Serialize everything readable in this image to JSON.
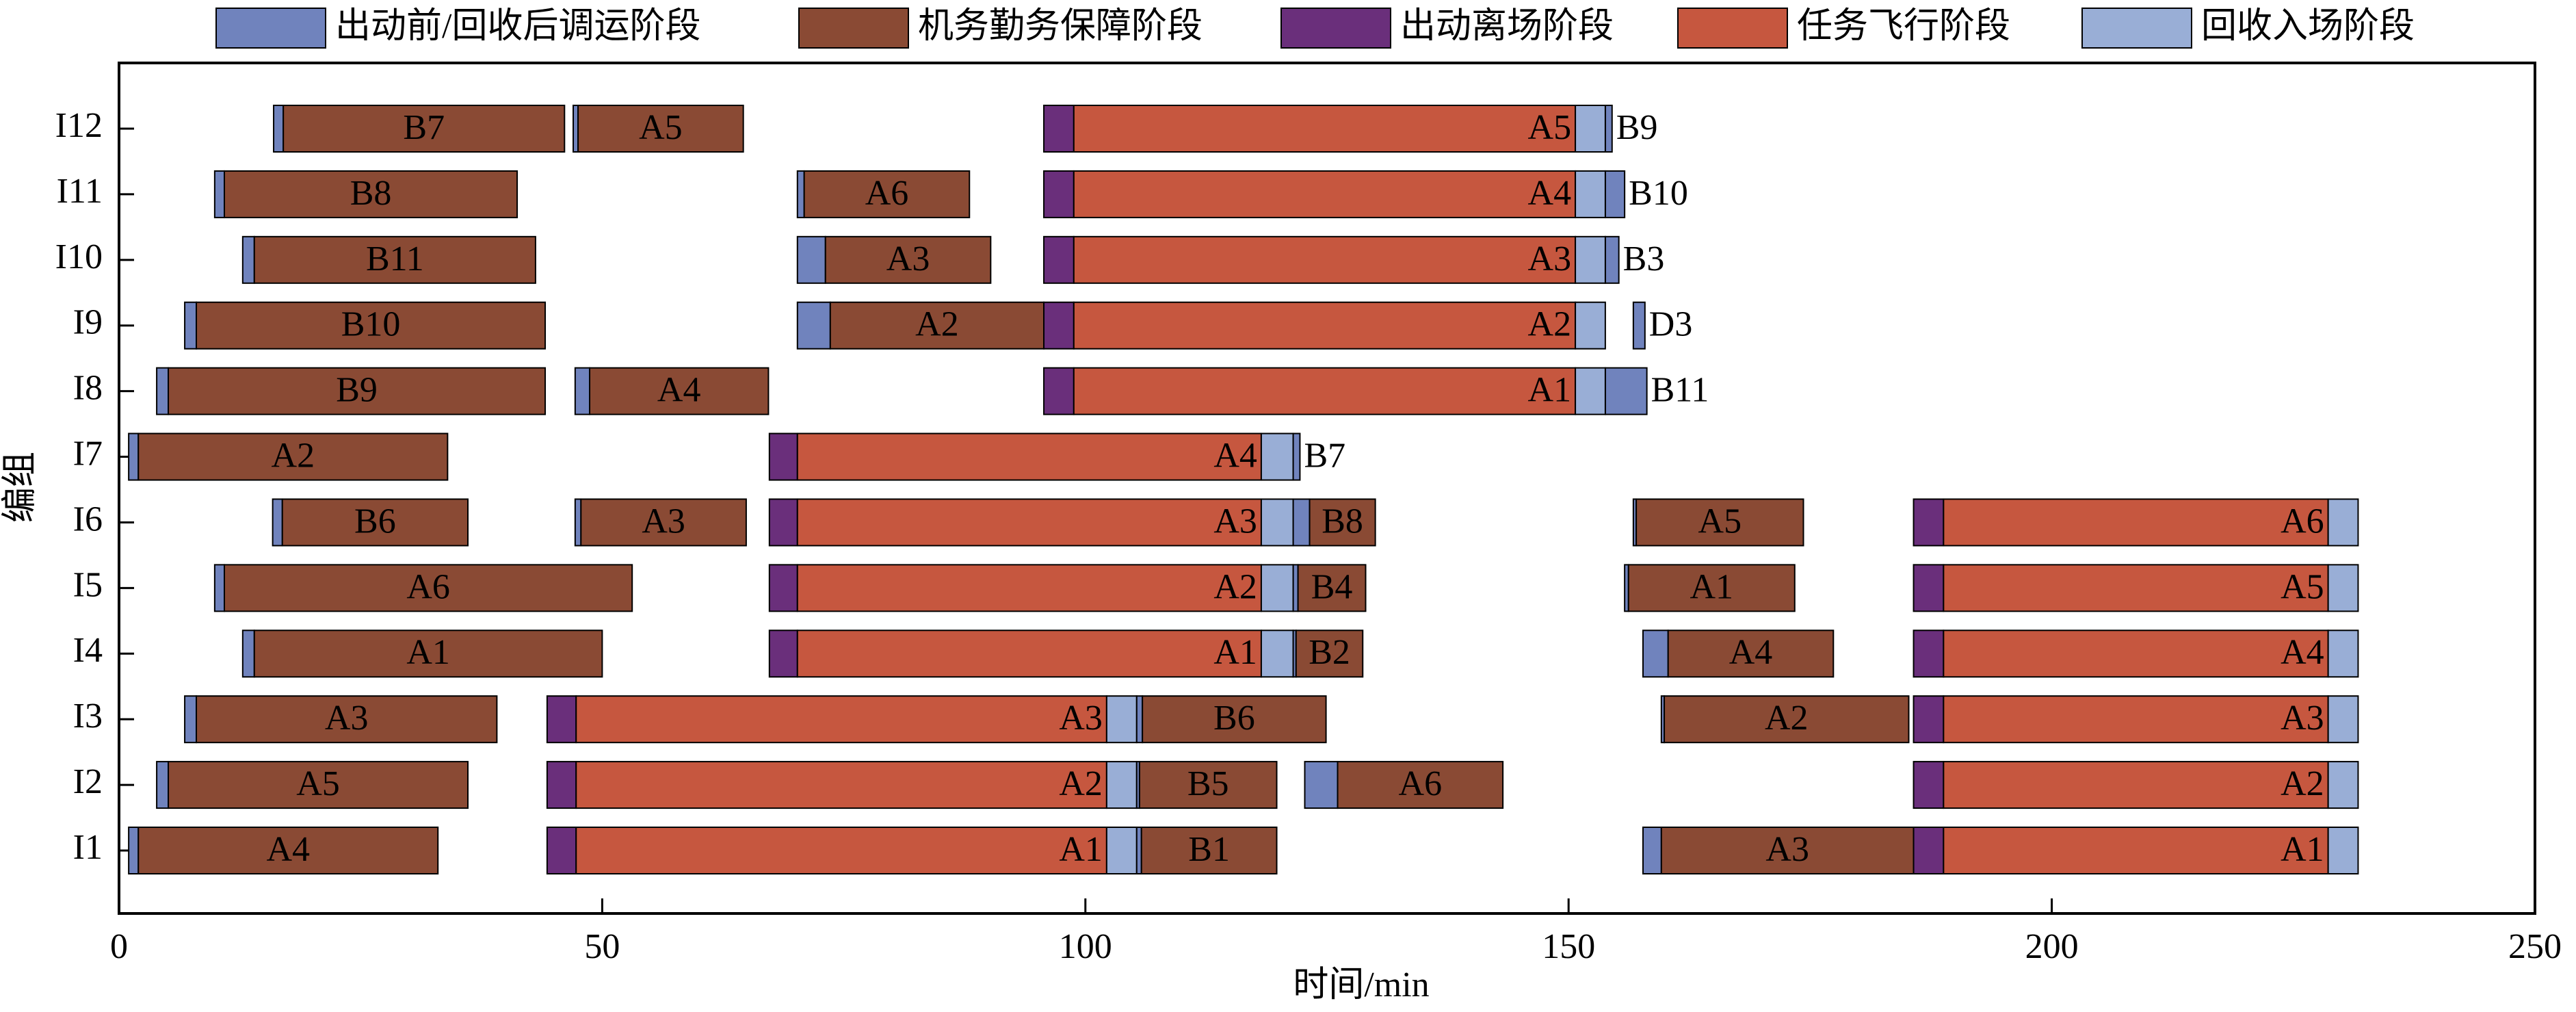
{
  "chart_data": {
    "type": "gantt",
    "xlabel": "时间/min",
    "ylabel": "编组",
    "xlim": [
      0,
      250
    ],
    "xticks": [
      0,
      50,
      100,
      150,
      200,
      250
    ],
    "categories": [
      "I1",
      "I2",
      "I3",
      "I4",
      "I5",
      "I6",
      "I7",
      "I8",
      "I9",
      "I10",
      "I11",
      "I12"
    ],
    "legend": "top",
    "series": [
      {
        "name": "出动前/回收后调运阶段",
        "color": "#7083bd",
        "tasks": [
          {
            "category": "I12",
            "start": 16,
            "end": 17
          },
          {
            "category": "I12",
            "start": 47,
            "end": 47.5
          },
          {
            "category": "I12",
            "start": 153.8,
            "end": 154.5,
            "label": "B9"
          },
          {
            "category": "I11",
            "start": 9.9,
            "end": 10.9
          },
          {
            "category": "I11",
            "start": 70.2,
            "end": 70.9
          },
          {
            "category": "I11",
            "start": 153.8,
            "end": 155.8,
            "label": "B10"
          },
          {
            "category": "I10",
            "start": 12.8,
            "end": 14
          },
          {
            "category": "I10",
            "start": 70.2,
            "end": 73.1
          },
          {
            "category": "I10",
            "start": 153.8,
            "end": 155.2,
            "label": "B3"
          },
          {
            "category": "I9",
            "start": 6.8,
            "end": 8
          },
          {
            "category": "I9",
            "start": 70.2,
            "end": 73.6
          },
          {
            "category": "I9",
            "start": 156.7,
            "end": 157.9,
            "label": "D3"
          },
          {
            "category": "I8",
            "start": 3.9,
            "end": 5.1
          },
          {
            "category": "I8",
            "start": 47.2,
            "end": 48.7
          },
          {
            "category": "I8",
            "start": 153.8,
            "end": 158.1,
            "label": "B11"
          },
          {
            "category": "I7",
            "start": 1,
            "end": 2
          },
          {
            "category": "I7",
            "start": 121.5,
            "end": 122.2,
            "label": "B7"
          },
          {
            "category": "I6",
            "start": 15.9,
            "end": 16.9
          },
          {
            "category": "I6",
            "start": 47.2,
            "end": 47.8
          },
          {
            "category": "I6",
            "start": 121.5,
            "end": 123.2
          },
          {
            "category": "I6",
            "start": 156.7,
            "end": 157
          },
          {
            "category": "I5",
            "start": 9.9,
            "end": 10.9
          },
          {
            "category": "I5",
            "start": 121.5,
            "end": 122
          },
          {
            "category": "I5",
            "start": 155.8,
            "end": 156.2
          },
          {
            "category": "I4",
            "start": 12.8,
            "end": 14
          },
          {
            "category": "I4",
            "start": 121.5,
            "end": 121.8
          },
          {
            "category": "I4",
            "start": 157.7,
            "end": 160.3
          },
          {
            "category": "I3",
            "start": 6.8,
            "end": 8
          },
          {
            "category": "I3",
            "start": 105.3,
            "end": 105.9
          },
          {
            "category": "I3",
            "start": 159.6,
            "end": 159.9
          },
          {
            "category": "I2",
            "start": 3.9,
            "end": 5.1
          },
          {
            "category": "I2",
            "start": 105.3,
            "end": 105.6
          },
          {
            "category": "I2",
            "start": 122.7,
            "end": 126.1
          },
          {
            "category": "I1",
            "start": 1,
            "end": 2
          },
          {
            "category": "I1",
            "start": 105.3,
            "end": 105.8
          },
          {
            "category": "I1",
            "start": 157.7,
            "end": 159.6
          }
        ]
      },
      {
        "name": "机务勤务保障阶段",
        "color": "#8a4a34",
        "tasks": [
          {
            "category": "I12",
            "start": 17,
            "end": 46.1,
            "label": "B7"
          },
          {
            "category": "I12",
            "start": 47.5,
            "end": 64.6,
            "label": "A5"
          },
          {
            "category": "I11",
            "start": 10.9,
            "end": 41.2,
            "label": "B8"
          },
          {
            "category": "I11",
            "start": 70.9,
            "end": 88,
            "label": "A6"
          },
          {
            "category": "I10",
            "start": 14,
            "end": 43.1,
            "label": "B11"
          },
          {
            "category": "I10",
            "start": 73.1,
            "end": 90.2,
            "label": "A3"
          },
          {
            "category": "I9",
            "start": 8,
            "end": 44.1,
            "label": "B10"
          },
          {
            "category": "I9",
            "start": 73.6,
            "end": 95.7,
            "label": "A2"
          },
          {
            "category": "I8",
            "start": 5.1,
            "end": 44.1,
            "label": "B9"
          },
          {
            "category": "I8",
            "start": 48.7,
            "end": 67.2,
            "label": "A4"
          },
          {
            "category": "I7",
            "start": 2,
            "end": 34,
            "label": "A2"
          },
          {
            "category": "I6",
            "start": 16.9,
            "end": 36.1,
            "label": "B6"
          },
          {
            "category": "I6",
            "start": 47.8,
            "end": 64.9,
            "label": "A3"
          },
          {
            "category": "I6",
            "start": 123.2,
            "end": 130,
            "label": "B8"
          },
          {
            "category": "I6",
            "start": 157,
            "end": 174.3,
            "label": "A5"
          },
          {
            "category": "I5",
            "start": 10.9,
            "end": 53.1,
            "label": "A6"
          },
          {
            "category": "I5",
            "start": 122,
            "end": 129,
            "label": "B4"
          },
          {
            "category": "I5",
            "start": 156.2,
            "end": 173.4,
            "label": "A1"
          },
          {
            "category": "I4",
            "start": 14,
            "end": 50,
            "label": "A1"
          },
          {
            "category": "I4",
            "start": 121.8,
            "end": 128.7,
            "label": "B2"
          },
          {
            "category": "I4",
            "start": 160.3,
            "end": 177.4,
            "label": "A4"
          },
          {
            "category": "I3",
            "start": 8,
            "end": 39.1,
            "label": "A3"
          },
          {
            "category": "I3",
            "start": 105.9,
            "end": 124.9,
            "label": "B6"
          },
          {
            "category": "I3",
            "start": 159.9,
            "end": 185.2,
            "label": "A2"
          },
          {
            "category": "I2",
            "start": 5.1,
            "end": 36.1,
            "label": "A5"
          },
          {
            "category": "I2",
            "start": 105.6,
            "end": 119.8,
            "label": "B5"
          },
          {
            "category": "I2",
            "start": 126.1,
            "end": 143.2,
            "label": "A6"
          },
          {
            "category": "I1",
            "start": 2,
            "end": 33,
            "label": "A4"
          },
          {
            "category": "I1",
            "start": 105.8,
            "end": 119.8,
            "label": "B1"
          },
          {
            "category": "I1",
            "start": 159.6,
            "end": 185.7,
            "label": "A3"
          }
        ]
      },
      {
        "name": "出动离场阶段",
        "color": "#6a2f7b",
        "tasks": [
          {
            "category": "I12",
            "start": 95.7,
            "end": 98.8
          },
          {
            "category": "I11",
            "start": 95.7,
            "end": 98.8
          },
          {
            "category": "I10",
            "start": 95.7,
            "end": 98.8
          },
          {
            "category": "I9",
            "start": 95.7,
            "end": 98.8
          },
          {
            "category": "I8",
            "start": 95.7,
            "end": 98.8
          },
          {
            "category": "I7",
            "start": 67.3,
            "end": 70.2
          },
          {
            "category": "I6",
            "start": 67.3,
            "end": 70.2
          },
          {
            "category": "I5",
            "start": 67.3,
            "end": 70.2
          },
          {
            "category": "I4",
            "start": 67.3,
            "end": 70.2
          },
          {
            "category": "I3",
            "start": 44.3,
            "end": 47.3
          },
          {
            "category": "I2",
            "start": 44.3,
            "end": 47.3
          },
          {
            "category": "I1",
            "start": 44.3,
            "end": 47.3
          },
          {
            "category": "I6",
            "start": 185.7,
            "end": 188.8
          },
          {
            "category": "I5",
            "start": 185.7,
            "end": 188.8
          },
          {
            "category": "I4",
            "start": 185.7,
            "end": 188.8
          },
          {
            "category": "I3",
            "start": 185.7,
            "end": 188.8
          },
          {
            "category": "I2",
            "start": 185.7,
            "end": 188.8
          },
          {
            "category": "I1",
            "start": 185.7,
            "end": 188.8
          }
        ]
      },
      {
        "name": "任务飞行阶段",
        "color": "#c6573f",
        "tasks": [
          {
            "category": "I12",
            "start": 98.8,
            "end": 150.7,
            "label": "A5"
          },
          {
            "category": "I11",
            "start": 98.8,
            "end": 150.7,
            "label": "A4"
          },
          {
            "category": "I10",
            "start": 98.8,
            "end": 150.7,
            "label": "A3"
          },
          {
            "category": "I9",
            "start": 98.8,
            "end": 150.7,
            "label": "A2"
          },
          {
            "category": "I8",
            "start": 98.8,
            "end": 150.7,
            "label": "A1"
          },
          {
            "category": "I7",
            "start": 70.2,
            "end": 118.2,
            "label": "A4"
          },
          {
            "category": "I6",
            "start": 70.2,
            "end": 118.2,
            "label": "A3"
          },
          {
            "category": "I5",
            "start": 70.2,
            "end": 118.2,
            "label": "A2"
          },
          {
            "category": "I4",
            "start": 70.2,
            "end": 118.2,
            "label": "A1"
          },
          {
            "category": "I3",
            "start": 47.3,
            "end": 102.2,
            "label": "A3"
          },
          {
            "category": "I2",
            "start": 47.3,
            "end": 102.2,
            "label": "A2"
          },
          {
            "category": "I1",
            "start": 47.3,
            "end": 102.2,
            "label": "A1"
          },
          {
            "category": "I6",
            "start": 188.8,
            "end": 228.6,
            "label": "A6"
          },
          {
            "category": "I5",
            "start": 188.8,
            "end": 228.6,
            "label": "A5"
          },
          {
            "category": "I4",
            "start": 188.8,
            "end": 228.6,
            "label": "A4"
          },
          {
            "category": "I3",
            "start": 188.8,
            "end": 228.6,
            "label": "A3"
          },
          {
            "category": "I2",
            "start": 188.8,
            "end": 228.6,
            "label": "A2"
          },
          {
            "category": "I1",
            "start": 188.8,
            "end": 228.6,
            "label": "A1"
          }
        ]
      },
      {
        "name": "回收入场阶段",
        "color": "#99aed6",
        "tasks": [
          {
            "category": "I12",
            "start": 150.7,
            "end": 153.8
          },
          {
            "category": "I11",
            "start": 150.7,
            "end": 153.8
          },
          {
            "category": "I10",
            "start": 150.7,
            "end": 153.8
          },
          {
            "category": "I9",
            "start": 150.7,
            "end": 153.8
          },
          {
            "category": "I8",
            "start": 150.7,
            "end": 153.8
          },
          {
            "category": "I7",
            "start": 118.2,
            "end": 121.5
          },
          {
            "category": "I6",
            "start": 118.2,
            "end": 121.5
          },
          {
            "category": "I5",
            "start": 118.2,
            "end": 121.5
          },
          {
            "category": "I4",
            "start": 118.2,
            "end": 121.5
          },
          {
            "category": "I3",
            "start": 102.2,
            "end": 105.3
          },
          {
            "category": "I2",
            "start": 102.2,
            "end": 105.3
          },
          {
            "category": "I1",
            "start": 102.2,
            "end": 105.3
          },
          {
            "category": "I6",
            "start": 228.6,
            "end": 231.7
          },
          {
            "category": "I5",
            "start": 228.6,
            "end": 231.7
          },
          {
            "category": "I4",
            "start": 228.6,
            "end": 231.7
          },
          {
            "category": "I3",
            "start": 228.6,
            "end": 231.7
          },
          {
            "category": "I2",
            "start": 228.6,
            "end": 231.7
          },
          {
            "category": "I1",
            "start": 228.6,
            "end": 231.7
          }
        ]
      }
    ]
  }
}
